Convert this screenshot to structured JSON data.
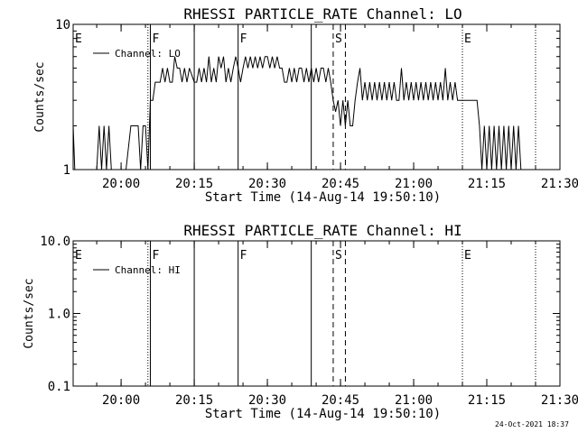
{
  "footer_timestamp": "24-Oct-2021 18:37",
  "chart_data": [
    {
      "type": "line",
      "title": "RHESSI PARTICLE_RATE Channel: LO",
      "xlabel": "Start Time (14-Aug-14 19:50:10)",
      "ylabel": "Counts/sec",
      "y_scale": "log",
      "ylim": [
        1,
        10
      ],
      "xlim": [
        "19:50:10",
        "21:30:00"
      ],
      "x_ticks": [
        "20:00",
        "20:15",
        "20:30",
        "20:45",
        "21:00",
        "21:15",
        "21:30"
      ],
      "y_tick_labels": [
        "1",
        "10"
      ],
      "legend": {
        "placement": "top-left",
        "entries": [
          "Channel: LO"
        ]
      },
      "series": [
        {
          "name": "Channel: LO",
          "points": [
            [
              "19:50:10",
              2
            ],
            [
              "19:50:30",
              1
            ],
            [
              "19:51:00",
              1
            ],
            [
              "19:52:00",
              1
            ],
            [
              "19:53:00",
              1
            ],
            [
              "19:54:00",
              1
            ],
            [
              "19:55:00",
              1
            ],
            [
              "19:55:30",
              2
            ],
            [
              "19:56:00",
              1
            ],
            [
              "19:56:30",
              2
            ],
            [
              "19:57:00",
              1
            ],
            [
              "19:57:30",
              2
            ],
            [
              "19:58:00",
              1
            ],
            [
              "19:59:00",
              1
            ],
            [
              "19:59:30",
              1
            ],
            [
              "20:00:00",
              1
            ],
            [
              "20:01:00",
              1
            ],
            [
              "20:02:00",
              2
            ],
            [
              "20:03:30",
              2
            ],
            [
              "20:04:00",
              1
            ],
            [
              "20:04:30",
              2
            ],
            [
              "20:05:00",
              2
            ],
            [
              "20:05:30",
              1
            ],
            [
              "20:06:00",
              3
            ],
            [
              "20:06:30",
              3
            ],
            [
              "20:07:00",
              4
            ],
            [
              "20:08:00",
              4
            ],
            [
              "20:08:30",
              5
            ],
            [
              "20:09:00",
              4
            ],
            [
              "20:09:30",
              5
            ],
            [
              "20:10:00",
              4
            ],
            [
              "20:10:30",
              4
            ],
            [
              "20:11:00",
              6
            ],
            [
              "20:11:30",
              5
            ],
            [
              "20:12:00",
              5
            ],
            [
              "20:12:30",
              4
            ],
            [
              "20:13:00",
              5
            ],
            [
              "20:13:30",
              4
            ],
            [
              "20:14:00",
              5
            ],
            [
              "20:15:00",
              4
            ],
            [
              "20:15:30",
              4
            ],
            [
              "20:16:00",
              5
            ],
            [
              "20:16:30",
              4
            ],
            [
              "20:17:00",
              5
            ],
            [
              "20:17:30",
              4
            ],
            [
              "20:18:00",
              6
            ],
            [
              "20:18:30",
              4
            ],
            [
              "20:19:00",
              5
            ],
            [
              "20:19:30",
              4
            ],
            [
              "20:20:00",
              6
            ],
            [
              "20:20:30",
              5
            ],
            [
              "20:21:00",
              6
            ],
            [
              "20:21:30",
              4
            ],
            [
              "20:22:00",
              5
            ],
            [
              "20:22:30",
              4
            ],
            [
              "20:23:00",
              5
            ],
            [
              "20:23:30",
              6
            ],
            [
              "20:24:00",
              5
            ],
            [
              "20:24:30",
              4
            ],
            [
              "20:25:00",
              5
            ],
            [
              "20:25:30",
              6
            ],
            [
              "20:26:00",
              5
            ],
            [
              "20:26:30",
              6
            ],
            [
              "20:27:00",
              5
            ],
            [
              "20:27:30",
              6
            ],
            [
              "20:28:00",
              5
            ],
            [
              "20:28:30",
              6
            ],
            [
              "20:29:00",
              5
            ],
            [
              "20:29:30",
              6
            ],
            [
              "20:30:00",
              6
            ],
            [
              "20:30:30",
              5
            ],
            [
              "20:31:00",
              6
            ],
            [
              "20:31:30",
              5
            ],
            [
              "20:32:00",
              6
            ],
            [
              "20:32:30",
              5
            ],
            [
              "20:33:00",
              5
            ],
            [
              "20:33:30",
              4
            ],
            [
              "20:34:00",
              4
            ],
            [
              "20:34:30",
              5
            ],
            [
              "20:35:00",
              4
            ],
            [
              "20:35:30",
              5
            ],
            [
              "20:36:00",
              4
            ],
            [
              "20:36:30",
              5
            ],
            [
              "20:37:00",
              5
            ],
            [
              "20:37:30",
              4
            ],
            [
              "20:38:00",
              5
            ],
            [
              "20:38:30",
              4
            ],
            [
              "20:39:00",
              5
            ],
            [
              "20:39:30",
              4
            ],
            [
              "20:40:00",
              5
            ],
            [
              "20:40:30",
              4
            ],
            [
              "20:41:00",
              5
            ],
            [
              "20:41:30",
              5
            ],
            [
              "20:42:00",
              4
            ],
            [
              "20:42:30",
              5
            ],
            [
              "20:43:00",
              4
            ],
            [
              "20:43:30",
              3
            ],
            [
              "20:44:00",
              2.5
            ],
            [
              "20:44:30",
              3
            ],
            [
              "20:45:00",
              2
            ],
            [
              "20:45:30",
              3
            ],
            [
              "20:46:00",
              2
            ],
            [
              "20:46:30",
              3
            ],
            [
              "20:47:00",
              2
            ],
            [
              "20:47:30",
              2
            ],
            [
              "20:48:00",
              3
            ],
            [
              "20:48:30",
              4
            ],
            [
              "20:49:00",
              5
            ],
            [
              "20:49:30",
              3
            ],
            [
              "20:50:00",
              4
            ],
            [
              "20:50:30",
              3
            ],
            [
              "20:51:00",
              4
            ],
            [
              "20:51:30",
              3
            ],
            [
              "20:52:00",
              4
            ],
            [
              "20:52:30",
              3
            ],
            [
              "20:53:00",
              4
            ],
            [
              "20:53:30",
              3
            ],
            [
              "20:54:00",
              4
            ],
            [
              "20:54:30",
              3
            ],
            [
              "20:55:00",
              4
            ],
            [
              "20:55:30",
              3
            ],
            [
              "20:56:00",
              4
            ],
            [
              "20:56:30",
              3
            ],
            [
              "20:57:00",
              3
            ],
            [
              "20:57:30",
              5
            ],
            [
              "20:58:00",
              3
            ],
            [
              "20:58:30",
              4
            ],
            [
              "20:59:00",
              3
            ],
            [
              "20:59:30",
              4
            ],
            [
              "21:00:00",
              3
            ],
            [
              "21:00:30",
              4
            ],
            [
              "21:01:00",
              3
            ],
            [
              "21:01:30",
              4
            ],
            [
              "21:02:00",
              3
            ],
            [
              "21:02:30",
              4
            ],
            [
              "21:03:00",
              3
            ],
            [
              "21:03:30",
              4
            ],
            [
              "21:04:00",
              3
            ],
            [
              "21:04:30",
              4
            ],
            [
              "21:05:00",
              3
            ],
            [
              "21:05:30",
              4
            ],
            [
              "21:06:00",
              3
            ],
            [
              "21:06:30",
              5
            ],
            [
              "21:07:00",
              3
            ],
            [
              "21:07:30",
              4
            ],
            [
              "21:08:00",
              3
            ],
            [
              "21:08:30",
              4
            ],
            [
              "21:09:00",
              3
            ],
            [
              "21:10:00",
              3
            ],
            [
              "21:11:00",
              3
            ],
            [
              "21:12:00",
              3
            ],
            [
              "21:13:00",
              3
            ],
            [
              "21:13:30",
              2
            ],
            [
              "21:14:00",
              1
            ],
            [
              "21:14:30",
              2
            ],
            [
              "21:15:00",
              1
            ],
            [
              "21:15:30",
              2
            ],
            [
              "21:16:00",
              1
            ],
            [
              "21:16:30",
              2
            ],
            [
              "21:17:00",
              1
            ],
            [
              "21:17:30",
              2
            ],
            [
              "21:18:00",
              1
            ],
            [
              "21:18:30",
              2
            ],
            [
              "21:19:00",
              1
            ],
            [
              "21:19:30",
              2
            ],
            [
              "21:20:00",
              1
            ],
            [
              "21:20:30",
              2
            ],
            [
              "21:21:00",
              1
            ],
            [
              "21:21:30",
              2
            ],
            [
              "21:22:00",
              1
            ],
            [
              "21:23:00",
              1
            ]
          ]
        }
      ],
      "markers": [
        {
          "time": "19:50:10",
          "label": "E",
          "style": "solid"
        },
        {
          "time": "20:05:30",
          "label": "",
          "style": "dotted"
        },
        {
          "time": "20:06:00",
          "label": "F",
          "style": "solid"
        },
        {
          "time": "20:15:00",
          "label": "",
          "style": "solid"
        },
        {
          "time": "20:24:00",
          "label": "F",
          "style": "solid"
        },
        {
          "time": "20:39:00",
          "label": "",
          "style": "solid"
        },
        {
          "time": "20:43:30",
          "label": "S",
          "style": "dashed"
        },
        {
          "time": "20:46:00",
          "label": "",
          "style": "dashed"
        },
        {
          "time": "21:10:00",
          "label": "E",
          "style": "dotted"
        },
        {
          "time": "21:25:00",
          "label": "",
          "style": "dotted"
        }
      ]
    },
    {
      "type": "line",
      "title": "RHESSI PARTICLE_RATE Channel: HI",
      "xlabel": "Start Time (14-Aug-14 19:50:10)",
      "ylabel": "Counts/sec",
      "y_scale": "log",
      "ylim": [
        0.1,
        10
      ],
      "xlim": [
        "19:50:10",
        "21:30:00"
      ],
      "x_ticks": [
        "20:00",
        "20:15",
        "20:30",
        "20:45",
        "21:00",
        "21:15",
        "21:30"
      ],
      "y_tick_labels": [
        "0.1",
        "1.0",
        "10.0"
      ],
      "legend": {
        "placement": "top-left",
        "entries": [
          "Channel: HI"
        ]
      },
      "series": [
        {
          "name": "Channel: HI",
          "points": []
        }
      ],
      "markers": [
        {
          "time": "19:50:10",
          "label": "E",
          "style": "solid"
        },
        {
          "time": "20:05:30",
          "label": "",
          "style": "dotted"
        },
        {
          "time": "20:06:00",
          "label": "F",
          "style": "solid"
        },
        {
          "time": "20:15:00",
          "label": "",
          "style": "solid"
        },
        {
          "time": "20:24:00",
          "label": "F",
          "style": "solid"
        },
        {
          "time": "20:39:00",
          "label": "",
          "style": "solid"
        },
        {
          "time": "20:43:30",
          "label": "S",
          "style": "dashed"
        },
        {
          "time": "20:46:00",
          "label": "",
          "style": "dashed"
        },
        {
          "time": "21:10:00",
          "label": "E",
          "style": "dotted"
        },
        {
          "time": "21:25:00",
          "label": "",
          "style": "dotted"
        }
      ]
    }
  ]
}
